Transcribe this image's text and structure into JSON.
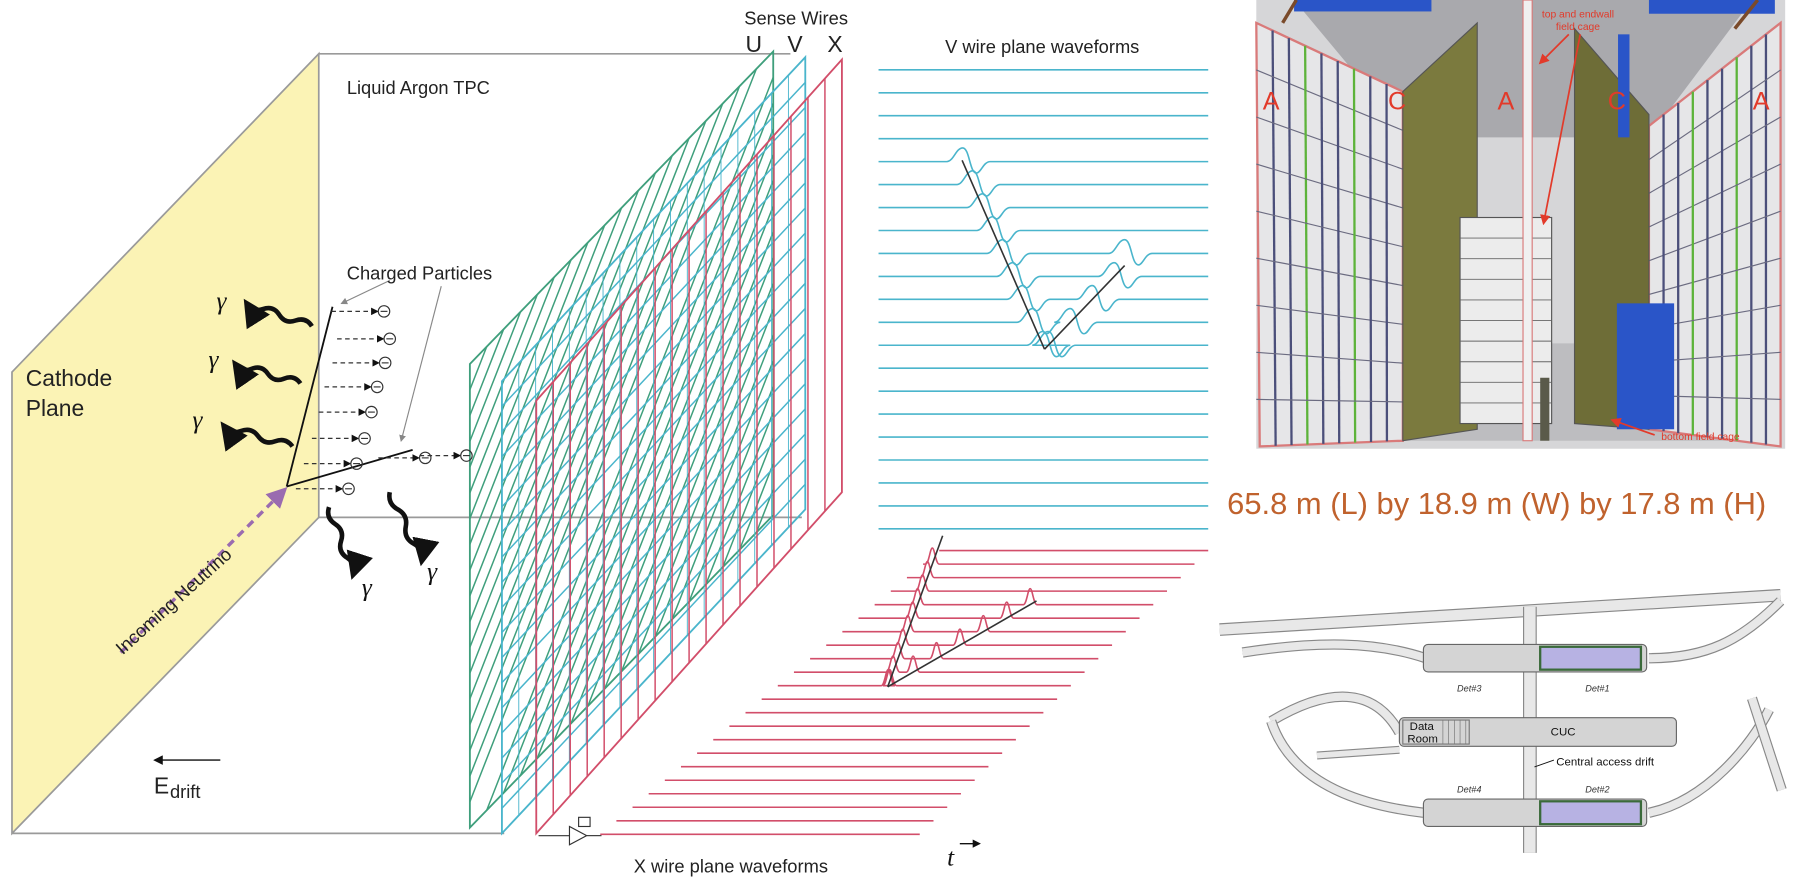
{
  "tpc_diagram": {
    "sense_wires_label": "Sense Wires",
    "planes": [
      "U",
      "V",
      "X"
    ],
    "v_waveforms_label": "V wire plane waveforms",
    "tpc_label": "Liquid Argon TPC",
    "charged_particles_label": "Charged Particles",
    "cathode_label": [
      "Cathode",
      "Plane"
    ],
    "gamma_labels": [
      "γ",
      "γ",
      "γ",
      "γ",
      "γ"
    ],
    "neutrino_label": "Incoming Neutrino",
    "drift_field": {
      "symbol": "E",
      "subscript": "drift"
    },
    "x_waveforms_label": "X wire plane waveforms",
    "time_label": "t"
  },
  "detector_view": {
    "labels": [
      "A",
      "C",
      "A",
      "C",
      "A"
    ],
    "top_callout": [
      "top and endwall",
      "field cage"
    ],
    "bottom_callout": "bottom field cage"
  },
  "dimensions": "65.8 m (L) by 18.9 m (W) by 17.8 m (H)",
  "cavern_map": {
    "detectors": [
      "Det#3",
      "Det#1",
      "Det#4",
      "Det#2"
    ],
    "data_room": [
      "Data",
      "Room"
    ],
    "cuc": "CUC",
    "access_drift": "Central access drift"
  }
}
